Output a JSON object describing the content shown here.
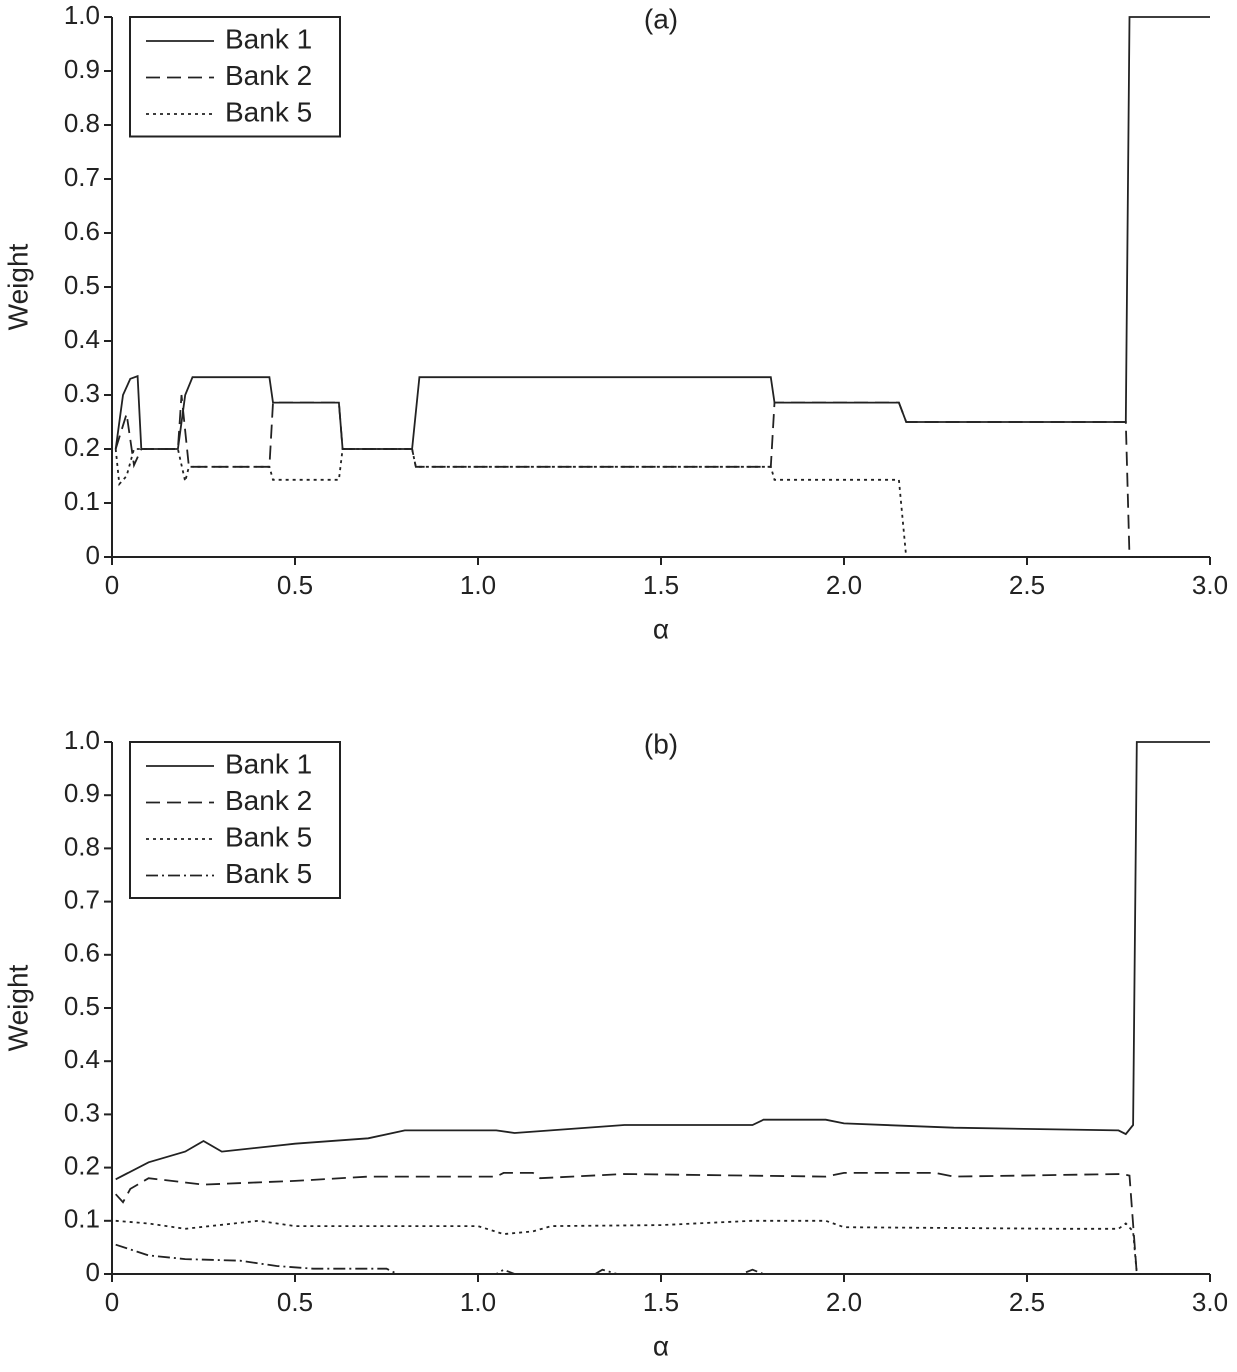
{
  "chart_data": [
    {
      "type": "line",
      "title": "(a)",
      "xlabel": "α",
      "ylabel": "Weight",
      "legend": "upper left",
      "color": "#222",
      "xlim": [
        0,
        3
      ],
      "ylim": [
        0,
        1
      ],
      "xticks": [
        0,
        0.5,
        {
          "value": 1,
          "label": "1.0"
        },
        1.5,
        {
          "value": 2,
          "label": "2.0"
        },
        2.5,
        {
          "value": 3,
          "label": "3.0"
        }
      ],
      "yticks": [
        0,
        0.1,
        0.2,
        0.3,
        0.4,
        0.5,
        0.6,
        0.7,
        0.8,
        0.9,
        {
          "value": 1,
          "label": "1.0"
        }
      ],
      "series": [
        {
          "name": "Bank 1",
          "dash": "solid",
          "x": [
            0.01,
            0.03,
            0.05,
            0.07,
            0.08,
            0.18,
            0.2,
            0.22,
            0.43,
            0.44,
            0.62,
            0.63,
            0.82,
            0.84,
            1.8,
            1.81,
            2.15,
            2.17,
            2.77,
            2.78,
            3.0
          ],
          "values": [
            0.2,
            0.3,
            0.33,
            0.335,
            0.2,
            0.2,
            0.3,
            0.333,
            0.333,
            0.286,
            0.286,
            0.2,
            0.2,
            0.333,
            0.333,
            0.286,
            0.286,
            0.25,
            0.25,
            1.0,
            1.0
          ]
        },
        {
          "name": "Bank 2",
          "dash": "dashed",
          "x": [
            0.01,
            0.04,
            0.06,
            0.08,
            0.18,
            0.19,
            0.21,
            0.43,
            0.44,
            0.62,
            0.63,
            0.82,
            0.83,
            1.8,
            1.81,
            2.15,
            2.17,
            2.77,
            2.78,
            3.0
          ],
          "values": [
            0.2,
            0.265,
            0.17,
            0.2,
            0.2,
            0.3,
            0.167,
            0.167,
            0.286,
            0.286,
            0.2,
            0.2,
            0.167,
            0.167,
            0.286,
            0.286,
            0.25,
            0.25,
            0,
            0
          ]
        },
        {
          "name": "Bank 5",
          "dash": "dotted",
          "x": [
            0.01,
            0.02,
            0.04,
            0.06,
            0.18,
            0.2,
            0.21,
            0.43,
            0.44,
            0.62,
            0.63,
            0.82,
            0.83,
            1.8,
            1.81,
            2.15,
            2.17,
            3.0
          ],
          "values": [
            0.2,
            0.135,
            0.15,
            0.2,
            0.2,
            0.14,
            0.167,
            0.167,
            0.143,
            0.143,
            0.2,
            0.2,
            0.167,
            0.167,
            0.143,
            0.143,
            0,
            0
          ]
        }
      ]
    },
    {
      "type": "line",
      "title": "(b)",
      "xlabel": "α",
      "ylabel": "Weight",
      "legend": "upper left",
      "color": "#222",
      "xlim": [
        0,
        3
      ],
      "ylim": [
        0,
        1
      ],
      "xticks": [
        0,
        0.5,
        {
          "value": 1,
          "label": "1.0"
        },
        1.5,
        {
          "value": 2,
          "label": "2.0"
        },
        2.5,
        {
          "value": 3,
          "label": "3.0"
        }
      ],
      "yticks": [
        0,
        0.1,
        0.2,
        0.3,
        0.4,
        0.5,
        0.6,
        0.7,
        0.8,
        0.9,
        {
          "value": 1,
          "label": "1.0"
        }
      ],
      "series": [
        {
          "name": "Bank 1",
          "dash": "solid",
          "x": [
            0.01,
            0.1,
            0.2,
            0.25,
            0.3,
            0.5,
            0.7,
            0.8,
            1.05,
            1.1,
            1.4,
            1.75,
            1.78,
            1.95,
            2.0,
            2.3,
            2.75,
            2.77,
            2.79,
            2.8,
            3.0
          ],
          "values": [
            0.178,
            0.21,
            0.23,
            0.25,
            0.23,
            0.245,
            0.255,
            0.27,
            0.27,
            0.265,
            0.28,
            0.28,
            0.29,
            0.29,
            0.283,
            0.275,
            0.27,
            0.263,
            0.28,
            1.0,
            1.0
          ]
        },
        {
          "name": "Bank 2",
          "dash": "dashed",
          "x": [
            0.01,
            0.03,
            0.05,
            0.1,
            0.25,
            0.5,
            0.7,
            1.05,
            1.07,
            1.15,
            1.17,
            1.4,
            1.95,
            2.0,
            2.25,
            2.3,
            2.76,
            2.78,
            2.8,
            3.0
          ],
          "values": [
            0.15,
            0.135,
            0.16,
            0.18,
            0.168,
            0.175,
            0.183,
            0.183,
            0.19,
            0.19,
            0.18,
            0.188,
            0.183,
            0.19,
            0.19,
            0.183,
            0.188,
            0.185,
            0,
            0
          ]
        },
        {
          "name": "Bank 5",
          "dash": "dotted",
          "x": [
            0.01,
            0.1,
            0.2,
            0.4,
            0.5,
            1.0,
            1.07,
            1.15,
            1.2,
            1.5,
            1.75,
            1.95,
            2.0,
            2.6,
            2.75,
            2.77,
            2.79,
            2.8,
            3.0
          ],
          "values": [
            0.1,
            0.095,
            0.085,
            0.1,
            0.09,
            0.09,
            0.075,
            0.08,
            0.09,
            0.092,
            0.1,
            0.1,
            0.088,
            0.085,
            0.085,
            0.095,
            0.08,
            0,
            0
          ]
        },
        {
          "name": "Bank 5",
          "dash": "dashdot",
          "x": [
            0.01,
            0.1,
            0.2,
            0.35,
            0.45,
            0.55,
            0.75,
            0.78,
            1.05,
            1.07,
            1.1,
            1.32,
            1.34,
            1.38,
            1.72,
            1.75,
            1.78,
            3.0
          ],
          "values": [
            0.055,
            0.035,
            0.028,
            0.025,
            0.015,
            0.01,
            0.01,
            0,
            0,
            0.008,
            0,
            0,
            0.008,
            0,
            0,
            0.008,
            0,
            0
          ]
        }
      ]
    }
  ]
}
